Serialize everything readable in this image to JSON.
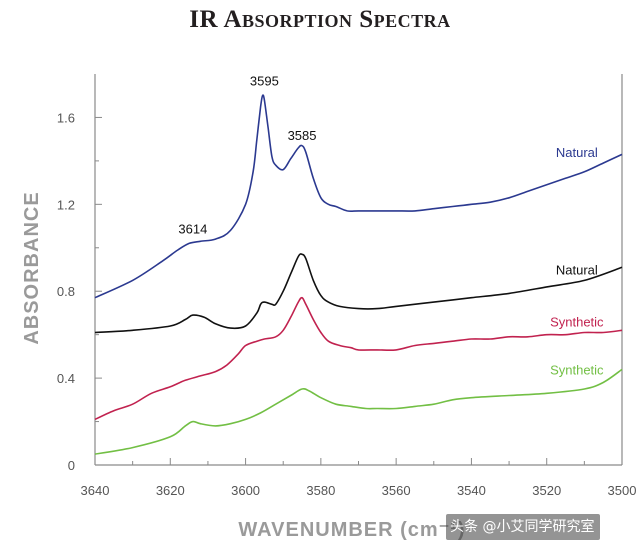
{
  "chart_data": {
    "type": "line",
    "title": "IR Absorption Spectra",
    "xlabel": "WAVENUMBER (cm⁻¹)",
    "ylabel": "ABSORBANCE",
    "xlim": [
      3640,
      3500
    ],
    "ylim": [
      0,
      1.8
    ],
    "x_ticks": [
      "3640",
      "3620",
      "3600",
      "3580",
      "3560",
      "3540",
      "3520",
      "3500"
    ],
    "y_ticks": [
      "0",
      "0.4",
      "0.8",
      "1.2",
      "1.6"
    ],
    "peak_annotations": [
      {
        "label": "3614",
        "x": 3614,
        "y": 1.02
      },
      {
        "label": "3595",
        "x": 3595,
        "y": 1.7
      },
      {
        "label": "3585",
        "x": 3585,
        "y": 1.45
      }
    ],
    "series": [
      {
        "name": "Natural",
        "color": "#2b3990",
        "x": [
          3640,
          3630,
          3622,
          3618,
          3615,
          3612,
          3608,
          3604,
          3600,
          3598,
          3597,
          3596,
          3595.5,
          3595,
          3594,
          3593,
          3592,
          3590,
          3588,
          3586,
          3585,
          3584,
          3582,
          3580,
          3578,
          3576,
          3573,
          3570,
          3565,
          3560,
          3555,
          3550,
          3545,
          3540,
          3535,
          3530,
          3525,
          3520,
          3515,
          3510,
          3505,
          3500
        ],
        "y": [
          0.77,
          0.85,
          0.94,
          0.99,
          1.02,
          1.03,
          1.04,
          1.08,
          1.2,
          1.35,
          1.5,
          1.65,
          1.7,
          1.68,
          1.55,
          1.42,
          1.38,
          1.36,
          1.41,
          1.46,
          1.47,
          1.44,
          1.32,
          1.23,
          1.2,
          1.19,
          1.17,
          1.17,
          1.17,
          1.17,
          1.17,
          1.18,
          1.19,
          1.2,
          1.21,
          1.23,
          1.26,
          1.29,
          1.32,
          1.35,
          1.39,
          1.43
        ]
      },
      {
        "name": "Natural",
        "color": "#111111",
        "x": [
          3640,
          3630,
          3620,
          3616,
          3614,
          3611,
          3608,
          3604,
          3600,
          3597,
          3596,
          3595,
          3593,
          3592,
          3590,
          3588,
          3586,
          3585,
          3584,
          3582,
          3580,
          3578,
          3575,
          3570,
          3565,
          3560,
          3550,
          3540,
          3530,
          3520,
          3510,
          3500
        ],
        "y": [
          0.61,
          0.62,
          0.64,
          0.67,
          0.69,
          0.68,
          0.65,
          0.63,
          0.64,
          0.7,
          0.74,
          0.75,
          0.74,
          0.74,
          0.8,
          0.88,
          0.96,
          0.97,
          0.95,
          0.85,
          0.78,
          0.75,
          0.73,
          0.72,
          0.72,
          0.73,
          0.75,
          0.77,
          0.79,
          0.82,
          0.85,
          0.91
        ]
      },
      {
        "name": "Synthetic",
        "color": "#c1224f",
        "x": [
          3640,
          3635,
          3630,
          3625,
          3620,
          3616,
          3612,
          3608,
          3605,
          3602,
          3600,
          3597,
          3595,
          3592,
          3590,
          3588,
          3586,
          3585,
          3584,
          3582,
          3580,
          3578,
          3575,
          3572,
          3570,
          3565,
          3560,
          3555,
          3550,
          3545,
          3540,
          3535,
          3530,
          3525,
          3520,
          3515,
          3510,
          3505,
          3500
        ],
        "y": [
          0.21,
          0.25,
          0.28,
          0.33,
          0.36,
          0.39,
          0.41,
          0.43,
          0.46,
          0.51,
          0.55,
          0.57,
          0.58,
          0.59,
          0.62,
          0.68,
          0.75,
          0.77,
          0.74,
          0.67,
          0.61,
          0.57,
          0.55,
          0.54,
          0.53,
          0.53,
          0.53,
          0.55,
          0.56,
          0.57,
          0.58,
          0.58,
          0.59,
          0.59,
          0.6,
          0.6,
          0.61,
          0.61,
          0.62
        ]
      },
      {
        "name": "Synthetic",
        "color": "#72bf44",
        "x": [
          3640,
          3630,
          3620,
          3616,
          3614,
          3612,
          3608,
          3604,
          3600,
          3596,
          3592,
          3588,
          3585,
          3583,
          3580,
          3576,
          3572,
          3568,
          3565,
          3560,
          3555,
          3550,
          3545,
          3540,
          3530,
          3520,
          3510,
          3505,
          3500
        ],
        "y": [
          0.05,
          0.08,
          0.13,
          0.18,
          0.2,
          0.19,
          0.18,
          0.19,
          0.21,
          0.24,
          0.28,
          0.32,
          0.35,
          0.34,
          0.31,
          0.28,
          0.27,
          0.26,
          0.26,
          0.26,
          0.27,
          0.28,
          0.3,
          0.31,
          0.32,
          0.33,
          0.35,
          0.38,
          0.44
        ]
      }
    ],
    "series_labels": [
      {
        "text": "Natural",
        "color": "#2b3990",
        "x": 3512,
        "y": 1.44
      },
      {
        "text": "Natural",
        "color": "#111111",
        "x": 3512,
        "y": 0.9
      },
      {
        "text": "Synthetic",
        "color": "#c1224f",
        "x": 3512,
        "y": 0.66
      },
      {
        "text": "Synthetic",
        "color": "#72bf44",
        "x": 3512,
        "y": 0.44
      }
    ]
  },
  "watermark": "头条 @小艾同学研究室"
}
